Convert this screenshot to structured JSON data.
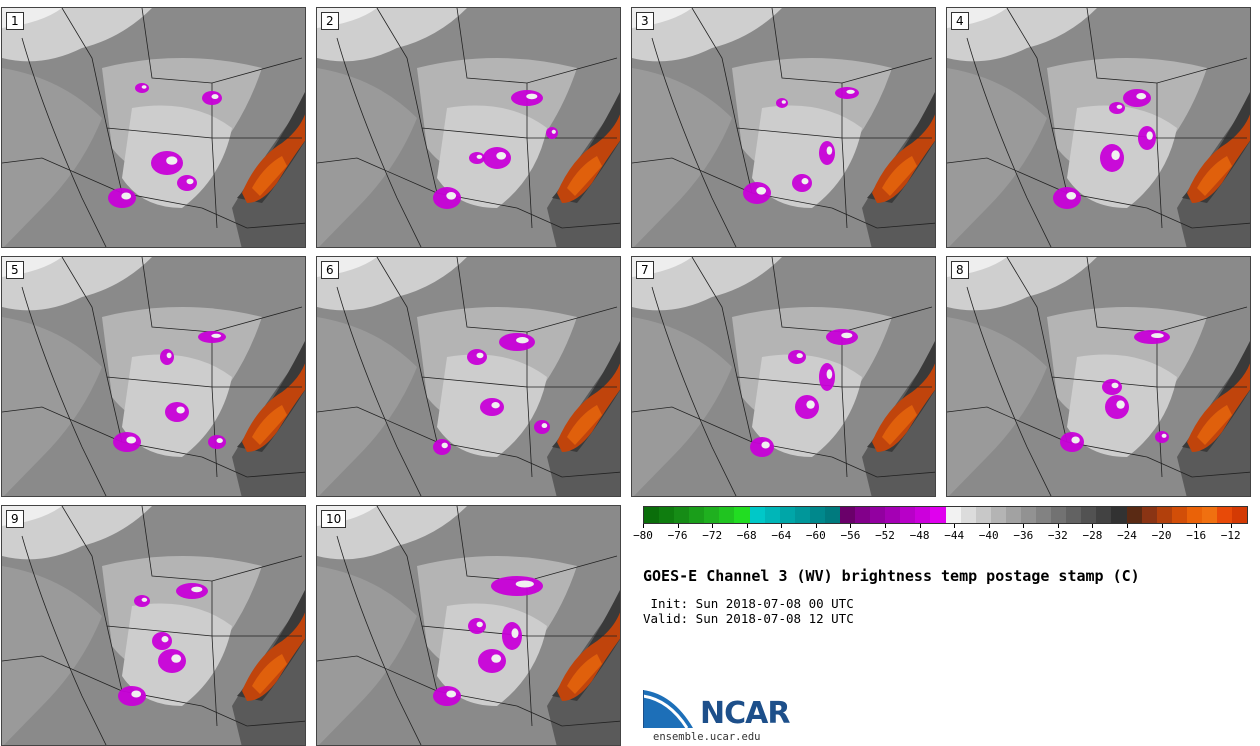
{
  "panels": [
    {
      "label": "1"
    },
    {
      "label": "2"
    },
    {
      "label": "3"
    },
    {
      "label": "4"
    },
    {
      "label": "5"
    },
    {
      "label": "6"
    },
    {
      "label": "7"
    },
    {
      "label": "8"
    },
    {
      "label": "9"
    },
    {
      "label": "10"
    }
  ],
  "colorbar": {
    "ticks": [
      "−80",
      "−76",
      "−72",
      "−68",
      "−64",
      "−60",
      "−56",
      "−52",
      "−48",
      "−44",
      "−40",
      "−36",
      "−32",
      "−28",
      "−24",
      "−20",
      "−16",
      "−12"
    ],
    "colors": [
      "#0a6e0a",
      "#0f7d0f",
      "#168c16",
      "#1a9e1a",
      "#1fb01f",
      "#20c420",
      "#22dd22",
      "#00c8c8",
      "#00b6b8",
      "#00a6a8",
      "#00979a",
      "#00888c",
      "#007a7e",
      "#6a006a",
      "#82008a",
      "#9200a0",
      "#a400b4",
      "#b800c8",
      "#cc00dc",
      "#e000ee",
      "#f2f2f2",
      "#dcdcdc",
      "#c8c8c8",
      "#b4b4b4",
      "#a2a2a2",
      "#929292",
      "#828282",
      "#727272",
      "#626262",
      "#525252",
      "#424242",
      "#323232",
      "#5a2a14",
      "#8a3414",
      "#b2400c",
      "#d24e08",
      "#ea6208",
      "#f07010",
      "#e84a08",
      "#d43a04"
    ]
  },
  "title": "GOES-E Channel 3 (WV) brightness temp postage stamp (C)",
  "init": " Init: Sun 2018-07-08 00 UTC",
  "valid": "Valid: Sun 2018-07-08 12 UTC",
  "logo_text": "NCAR",
  "url": "ensemble.ucar.edu"
}
